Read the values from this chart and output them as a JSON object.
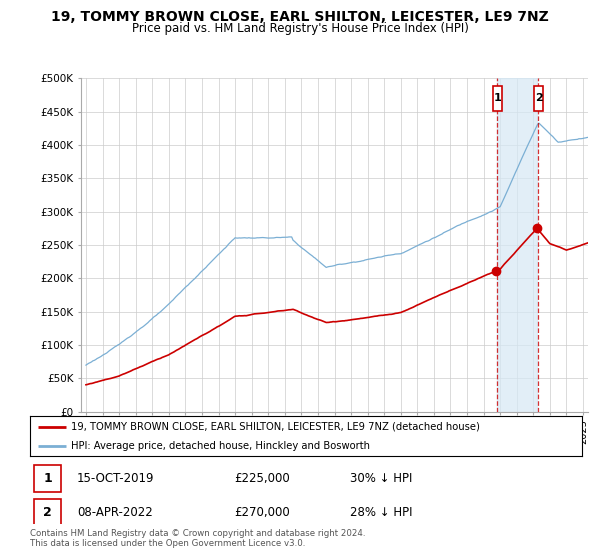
{
  "title": "19, TOMMY BROWN CLOSE, EARL SHILTON, LEICESTER, LE9 7NZ",
  "subtitle": "Price paid vs. HM Land Registry's House Price Index (HPI)",
  "title_fontsize": 10,
  "subtitle_fontsize": 8.5,
  "background_color": "#ffffff",
  "grid_color": "#cccccc",
  "hpi_color": "#7bafd4",
  "hpi_fill_color": "#d6e8f5",
  "price_color": "#cc0000",
  "purchase1_year": 2019.79,
  "purchase2_year": 2022.27,
  "purchase1_price": 225000,
  "purchase2_price": 270000,
  "ylim_min": 0,
  "ylim_max": 500000,
  "yticks": [
    0,
    50000,
    100000,
    150000,
    200000,
    250000,
    300000,
    350000,
    400000,
    450000,
    500000
  ],
  "xmin": 1994.7,
  "xmax": 2025.3,
  "legend_line1": "19, TOMMY BROWN CLOSE, EARL SHILTON, LEICESTER, LE9 7NZ (detached house)",
  "legend_line2": "HPI: Average price, detached house, Hinckley and Bosworth",
  "ann1_date": "15-OCT-2019",
  "ann1_price": "£225,000",
  "ann1_pct": "30% ↓ HPI",
  "ann2_date": "08-APR-2022",
  "ann2_price": "£270,000",
  "ann2_pct": "28% ↓ HPI",
  "footer1": "Contains HM Land Registry data © Crown copyright and database right 2024.",
  "footer2": "This data is licensed under the Open Government Licence v3.0."
}
